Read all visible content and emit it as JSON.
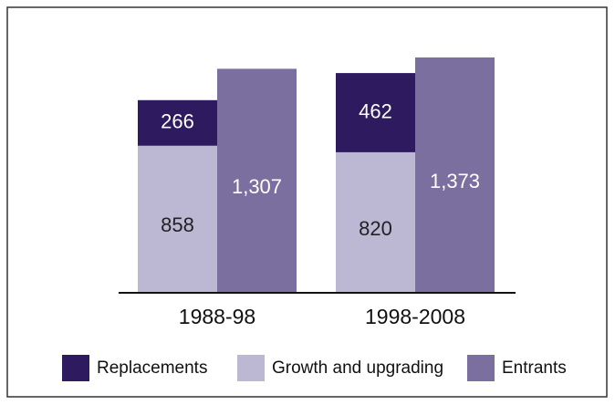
{
  "chart_data": {
    "type": "bar",
    "categories": [
      "1988-98",
      "1998-2008"
    ],
    "series": [
      {
        "name": "Replacements",
        "color": "#2e1a5e",
        "values": [
          266,
          462
        ]
      },
      {
        "name": "Growth and upgrading",
        "color": "#bcb8d4",
        "values": [
          858,
          820
        ]
      },
      {
        "name": "Entrants",
        "color": "#7a6f9e",
        "values": [
          1307,
          1373
        ],
        "value_labels": [
          "1,307",
          "1,373"
        ]
      }
    ]
  }
}
